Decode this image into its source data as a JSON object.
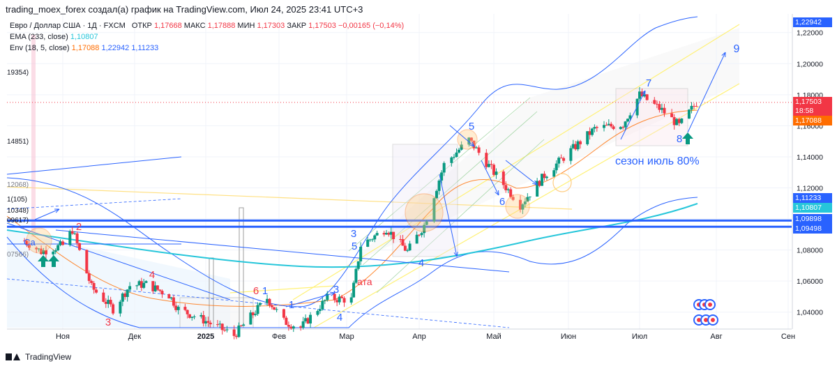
{
  "header": {
    "caption": "trading_moex_forex создал(а) график на TradingView.com, Июл 24, 2025 23:41 UTC+3"
  },
  "legend": {
    "symbol": "Евро / Доллар США · 1Д · FXCM",
    "open_label": "ОТКР",
    "open": "1,17668",
    "high_label": "МАКС",
    "high": "1,17888",
    "low_label": "МИН",
    "low": "1,17303",
    "close_label": "ЗАКР",
    "close": "1,17503",
    "change": "−0,00165 (−0,14%)",
    "ema_label": "EMA (233, close)",
    "ema_value": "1,10807",
    "env_label": "Env (18, 5, close)",
    "env_basis": "1,17088",
    "env_upper": "1,22942",
    "env_lower": "1,11233"
  },
  "price_tags": {
    "env_upper": "1,22942",
    "last_price": "1,17503",
    "countdown": "18:58",
    "env_basis": "1,17088",
    "env_lower": "1,11233",
    "ema": "1,10807",
    "level_1": "1,09898",
    "level_2": "1,09498"
  },
  "left_clipped_labels": [
    "19354)",
    "14851)",
    "12068)",
    "1(105)",
    "10348)",
    "09617)",
    "07566)"
  ],
  "annotations": {
    "season": "сезон  июль 80%",
    "ata": "ата",
    "ca": "Са"
  },
  "footer": {
    "brand": "TradingView"
  },
  "colors": {
    "up": "#089981",
    "down": "#f23645",
    "ema": "#26c6da",
    "env_basis": "#ff6d00",
    "env_band": "#2962ff",
    "level": "#2962ff",
    "wave_blue": "#2962ff",
    "wave_red": "#f23645",
    "channel_yellow": "#fff176",
    "box": "#9e9e9e"
  },
  "chart_data": {
    "type": "candlestick",
    "symbol": "EURUSD",
    "timeframe": "1D",
    "x_ticks": [
      "Ноя",
      "Дек",
      "2025",
      "Фев",
      "Мар",
      "Апр",
      "Май",
      "Июн",
      "Июл",
      "Авг",
      "Сен"
    ],
    "y_ticks": [
      "1,04000",
      "1,06000",
      "1,08000",
      "1,10000",
      "1,12000",
      "1,14000",
      "1,16000",
      "1,18000",
      "1,20000",
      "1,22000"
    ],
    "ylim": [
      1.03,
      1.232
    ],
    "horizontal_levels": [
      1.09898,
      1.09498
    ],
    "last_price": 1.17503,
    "anchors": [
      {
        "date": "2024-10-16",
        "close": 1.086
      },
      {
        "date": "2024-10-23",
        "close": 1.079
      },
      {
        "date": "2024-11-01",
        "close": 1.083
      },
      {
        "date": "2024-11-05",
        "close": 1.093
      },
      {
        "date": "2024-11-13",
        "close": 1.056
      },
      {
        "date": "2024-11-22",
        "close": 1.042
      },
      {
        "date": "2024-11-29",
        "close": 1.057
      },
      {
        "date": "2024-12-06",
        "close": 1.058
      },
      {
        "date": "2024-12-16",
        "close": 1.051
      },
      {
        "date": "2024-12-20",
        "close": 1.042
      },
      {
        "date": "2024-12-31",
        "close": 1.035
      },
      {
        "date": "2025-01-13",
        "close": 1.025
      },
      {
        "date": "2025-01-27",
        "close": 1.049
      },
      {
        "date": "2025-02-03",
        "close": 1.034
      },
      {
        "date": "2025-02-10",
        "close": 1.03
      },
      {
        "date": "2025-02-21",
        "close": 1.049
      },
      {
        "date": "2025-03-03",
        "close": 1.048
      },
      {
        "date": "2025-03-07",
        "close": 1.083
      },
      {
        "date": "2025-03-18",
        "close": 1.094
      },
      {
        "date": "2025-03-27",
        "close": 1.079
      },
      {
        "date": "2025-04-03",
        "close": 1.096
      },
      {
        "date": "2025-04-11",
        "close": 1.135
      },
      {
        "date": "2025-04-21",
        "close": 1.151
      },
      {
        "date": "2025-05-01",
        "close": 1.13
      },
      {
        "date": "2025-05-12",
        "close": 1.109
      },
      {
        "date": "2025-05-22",
        "close": 1.128
      },
      {
        "date": "2025-06-02",
        "close": 1.144
      },
      {
        "date": "2025-06-12",
        "close": 1.158
      },
      {
        "date": "2025-06-24",
        "close": 1.161
      },
      {
        "date": "2025-07-01",
        "close": 1.18
      },
      {
        "date": "2025-07-10",
        "close": 1.17
      },
      {
        "date": "2025-07-17",
        "close": 1.16
      },
      {
        "date": "2025-07-24",
        "close": 1.175
      }
    ],
    "waves": [
      {
        "label": "3",
        "color": "red"
      },
      {
        "label": "4",
        "color": "red"
      },
      {
        "label": "6",
        "color": "red"
      },
      {
        "label": "1",
        "color": "blue"
      },
      {
        "label": "2",
        "color": "red"
      },
      {
        "label": "3",
        "color": "blue"
      },
      {
        "label": "4",
        "color": "blue"
      },
      {
        "label": "5",
        "color": "blue"
      },
      {
        "label": "6",
        "color": "blue"
      },
      {
        "label": "7",
        "color": "blue"
      },
      {
        "label": "8",
        "color": "blue"
      },
      {
        "label": "9",
        "color": "blue"
      },
      {
        "label": "1",
        "color": "blue"
      },
      {
        "label": "3",
        "color": "blue"
      },
      {
        "label": "5",
        "color": "blue"
      },
      {
        "label": "4",
        "color": "blue"
      }
    ]
  }
}
